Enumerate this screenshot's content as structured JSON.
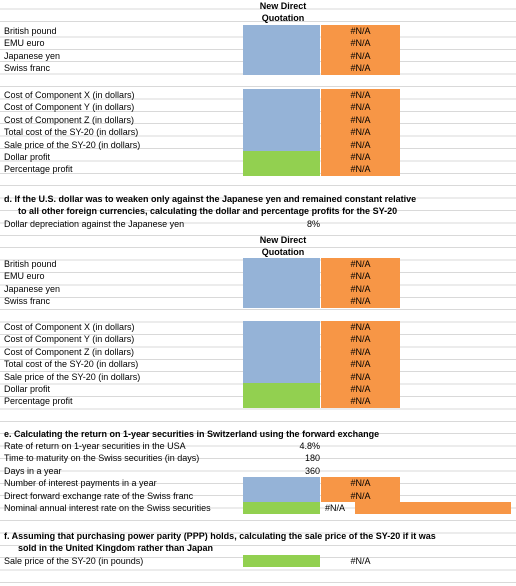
{
  "header_1": {
    "line1": "New Direct",
    "line2": "Quotation"
  },
  "currencies_1": [
    {
      "label": "British pound",
      "value": "#N/A"
    },
    {
      "label": "EMU euro",
      "value": "#N/A"
    },
    {
      "label": "Japanese yen",
      "value": "#N/A"
    },
    {
      "label": "Swiss franc",
      "value": "#N/A"
    }
  ],
  "costs_1": [
    {
      "label": "Cost of Component X (in dollars)",
      "value": "#N/A"
    },
    {
      "label": "Cost of Component Y (in dollars)",
      "value": "#N/A"
    },
    {
      "label": "Cost of Component Z (in dollars)",
      "value": "#N/A"
    },
    {
      "label": "Total cost of the SY-20 (in dollars)",
      "value": "#N/A"
    },
    {
      "label": "Sale price of the SY-20 (in dollars)",
      "value": "#N/A"
    },
    {
      "label": "Dollar profit",
      "value": "#N/A"
    },
    {
      "label": "Percentage profit",
      "value": "#N/A"
    }
  ],
  "section_d": {
    "title_line1": "d. If the U.S. dollar was to weaken only against the Japanese yen and remained constant relative",
    "title_line2": "to all other foreign currencies, calculating the dollar and percentage profits for the SY-20",
    "depreciation_label": "Dollar depreciation against the Japanese yen",
    "depreciation_value": "8%"
  },
  "header_2": {
    "line1": "New Direct",
    "line2": "Quotation"
  },
  "currencies_2": [
    {
      "label": "British pound",
      "value": "#N/A"
    },
    {
      "label": "EMU euro",
      "value": "#N/A"
    },
    {
      "label": "Japanese yen",
      "value": "#N/A"
    },
    {
      "label": "Swiss franc",
      "value": "#N/A"
    }
  ],
  "costs_2": [
    {
      "label": "Cost of Component X (in dollars)",
      "value": "#N/A"
    },
    {
      "label": "Cost of Component Y (in dollars)",
      "value": "#N/A"
    },
    {
      "label": "Cost of Component Z (in dollars)",
      "value": "#N/A"
    },
    {
      "label": "Total cost of the SY-20 (in dollars)",
      "value": "#N/A"
    },
    {
      "label": "Sale price of the SY-20 (in dollars)",
      "value": "#N/A"
    },
    {
      "label": "Dollar profit",
      "value": "#N/A"
    },
    {
      "label": "Percentage profit",
      "value": "#N/A"
    }
  ],
  "section_e": {
    "title": "e. Calculating the return on 1-year securities in Switzerland using the forward exchange",
    "rows": [
      {
        "label": "Rate of return on 1-year securities in the USA",
        "value": "4.8%"
      },
      {
        "label": "Time to maturity on the Swiss securities (in days)",
        "value": 180
      },
      {
        "label": "Days in a year",
        "value": 360
      },
      {
        "label": "Number of interest payments in a year",
        "value": "#N/A"
      },
      {
        "label": "Direct forward exchange rate of the Swiss franc",
        "value": "#N/A"
      },
      {
        "label": "Nominal annual interest rate on the Swiss securities",
        "value": "#N/A"
      }
    ]
  },
  "section_f": {
    "title_line1": "f.  Assuming that purchasing power parity (PPP) holds, calculating the sale price of the SY-20 if it was",
    "title_line2": "sold in the United Kingdom rather than Japan",
    "rows": [
      {
        "label": "Sale price of the SY-20 (in pounds)",
        "value": "#N/A"
      }
    ]
  }
}
